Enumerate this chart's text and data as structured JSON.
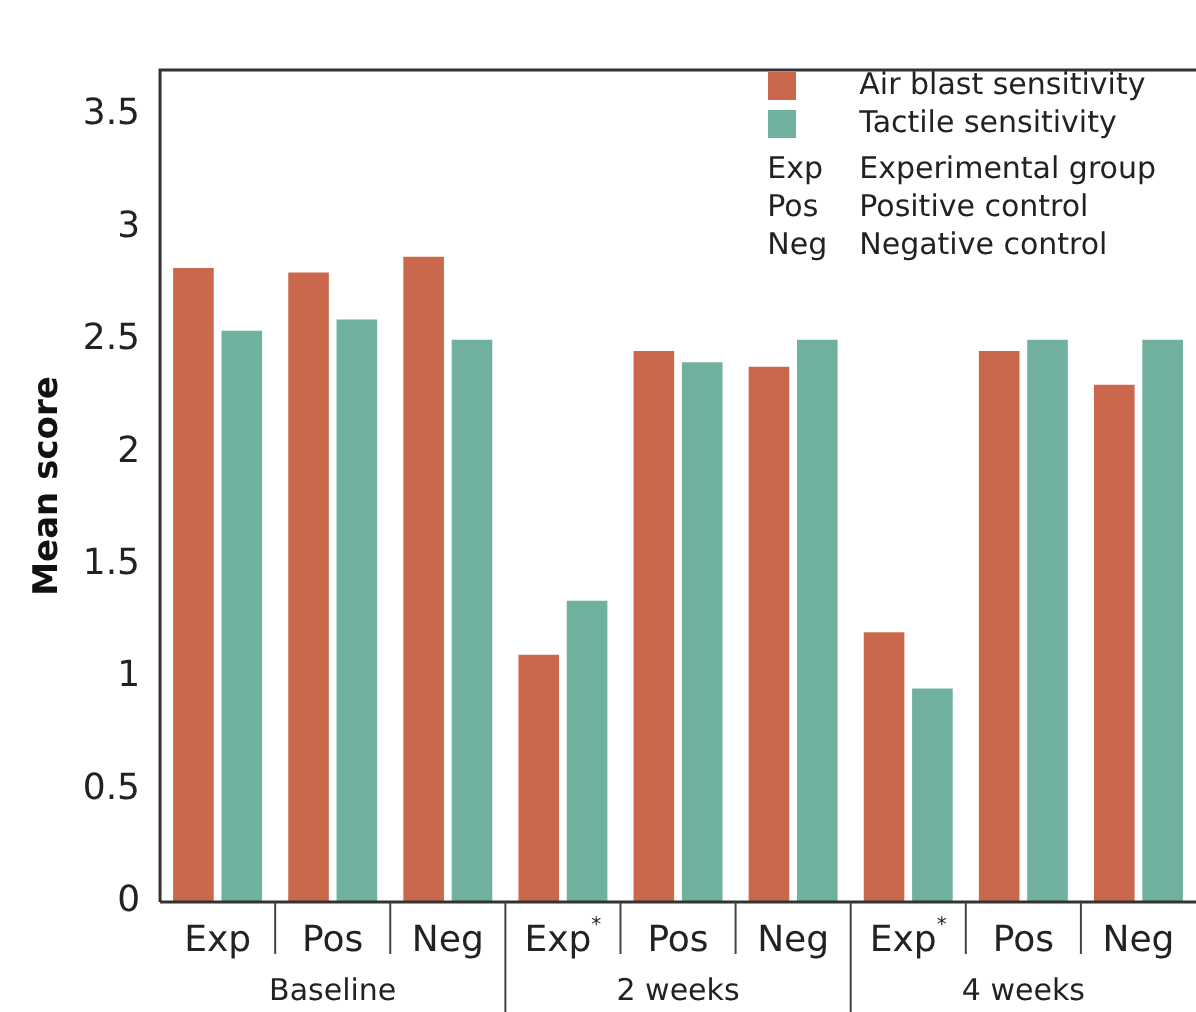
{
  "chart_data": {
    "type": "bar",
    "ylabel": "Mean score",
    "categories": [
      "Exp",
      "Pos",
      "Neg",
      "Exp$^{*}$",
      "Pos",
      "Neg",
      "Exp$^{*}$",
      "Pos",
      "Neg"
    ],
    "series": [
      {
        "name": "Air blast sensitivity",
        "color": "#c9684c",
        "values": [
          2.82,
          2.8,
          2.87,
          1.1,
          2.45,
          2.38,
          1.2,
          2.45,
          2.3
        ]
      },
      {
        "name": "Tactile sensitivity",
        "color": "#70b09f",
        "values": [
          2.54,
          2.59,
          2.5,
          1.34,
          2.4,
          2.5,
          0.95,
          2.5,
          2.5
        ]
      }
    ],
    "ylim": [
      0,
      3.7
    ],
    "yticks": [
      0,
      0.5,
      1,
      1.5,
      2,
      2.5,
      3,
      3.5
    ],
    "grid": false,
    "legend": "top right",
    "annotations": [
      "Baseline",
      "2 weeks",
      "4 weeks",
      "Exp Experimental group",
      "Pos Positive control",
      "Neg Negative control"
    ]
  }
}
